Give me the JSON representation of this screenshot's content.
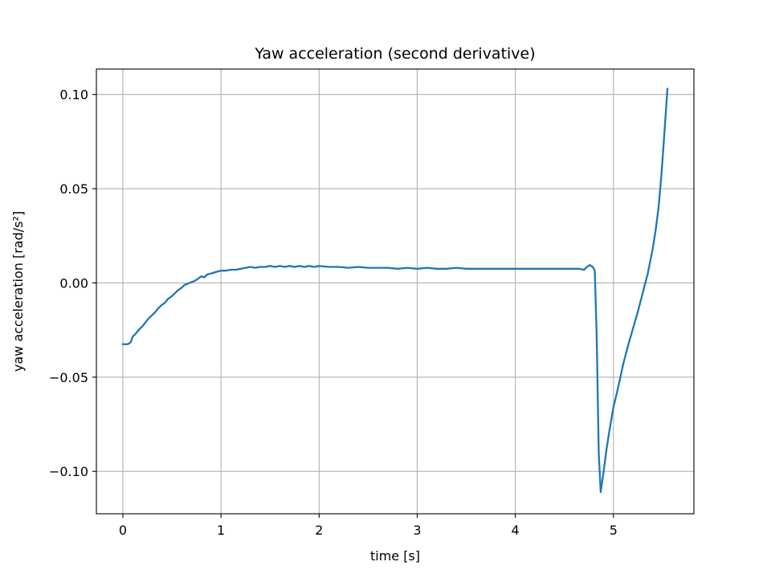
{
  "chart_data": {
    "type": "line",
    "title": "Yaw acceleration (second derivative)",
    "xlabel": "time [s]",
    "ylabel": "yaw acceleration [rad/s²]",
    "xlim": [
      -0.27,
      5.82
    ],
    "ylim": [
      -0.1225,
      0.1135
    ],
    "grid": true,
    "xticks": [
      0,
      1,
      2,
      3,
      4,
      5
    ],
    "xtick_labels": [
      "0",
      "1",
      "2",
      "3",
      "4",
      "5"
    ],
    "yticks": [
      -0.1,
      -0.05,
      0.0,
      0.05,
      0.1
    ],
    "ytick_labels": [
      "−0.10",
      "−0.05",
      "0.00",
      "0.05",
      "0.10"
    ],
    "series": [
      {
        "color": "#1f77b4",
        "x": [
          0.0,
          0.05,
          0.08,
          0.1,
          0.13,
          0.16,
          0.2,
          0.23,
          0.26,
          0.3,
          0.33,
          0.36,
          0.4,
          0.43,
          0.46,
          0.5,
          0.53,
          0.56,
          0.6,
          0.63,
          0.66,
          0.7,
          0.73,
          0.76,
          0.8,
          0.83,
          0.86,
          0.9,
          0.93,
          0.96,
          1.0,
          1.05,
          1.1,
          1.15,
          1.2,
          1.25,
          1.3,
          1.35,
          1.4,
          1.45,
          1.5,
          1.55,
          1.6,
          1.65,
          1.7,
          1.75,
          1.8,
          1.85,
          1.9,
          1.95,
          2.0,
          2.1,
          2.2,
          2.3,
          2.4,
          2.5,
          2.6,
          2.7,
          2.8,
          2.9,
          3.0,
          3.1,
          3.2,
          3.3,
          3.4,
          3.5,
          3.6,
          3.7,
          3.8,
          3.9,
          4.0,
          4.1,
          4.2,
          4.3,
          4.4,
          4.5,
          4.6,
          4.65,
          4.7,
          4.73,
          4.76,
          4.79,
          4.81,
          4.83,
          4.85,
          4.87,
          4.9,
          4.93,
          4.96,
          5.0,
          5.05,
          5.1,
          5.15,
          5.2,
          5.25,
          5.3,
          5.35,
          5.4,
          5.43,
          5.46,
          5.49,
          5.52,
          5.55
        ],
        "y": [
          -0.0325,
          -0.0325,
          -0.0315,
          -0.0285,
          -0.027,
          -0.025,
          -0.023,
          -0.021,
          -0.019,
          -0.017,
          -0.0155,
          -0.0135,
          -0.0115,
          -0.0105,
          -0.0085,
          -0.007,
          -0.0055,
          -0.004,
          -0.0025,
          -0.001,
          -0.0005,
          0.0005,
          0.001,
          0.002,
          0.0035,
          0.003,
          0.0045,
          0.005,
          0.0055,
          0.006,
          0.0065,
          0.0065,
          0.007,
          0.007,
          0.0075,
          0.008,
          0.0085,
          0.008,
          0.0085,
          0.0085,
          0.009,
          0.0085,
          0.009,
          0.0085,
          0.009,
          0.0085,
          0.009,
          0.0085,
          0.009,
          0.0085,
          0.009,
          0.0085,
          0.0085,
          0.008,
          0.0085,
          0.008,
          0.008,
          0.008,
          0.0075,
          0.008,
          0.0075,
          0.008,
          0.0075,
          0.0075,
          0.008,
          0.0075,
          0.0075,
          0.0075,
          0.0075,
          0.0075,
          0.0075,
          0.0075,
          0.0075,
          0.0075,
          0.0075,
          0.0075,
          0.0075,
          0.0075,
          0.007,
          0.0085,
          0.0095,
          0.0085,
          0.0065,
          -0.03,
          -0.09,
          -0.111,
          -0.1,
          -0.088,
          -0.078,
          -0.066,
          -0.055,
          -0.043,
          -0.033,
          -0.024,
          -0.015,
          -0.005,
          0.005,
          0.018,
          0.028,
          0.04,
          0.058,
          0.08,
          0.103
        ]
      }
    ]
  }
}
